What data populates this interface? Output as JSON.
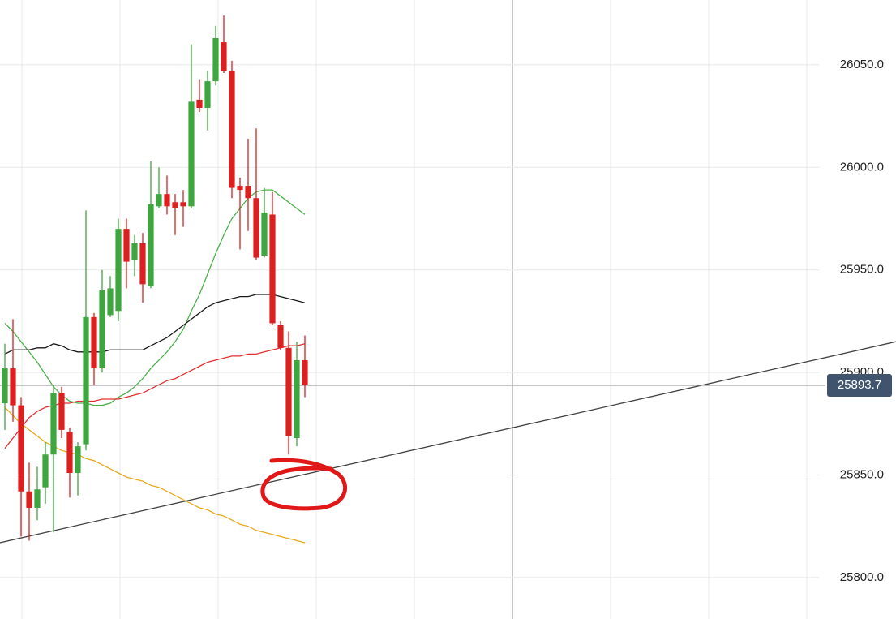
{
  "chart_data": {
    "type": "candlestick",
    "xlim": [
      -0.6,
      109.9
    ],
    "xgrid": [
      2.1,
      14.2,
      26.3,
      38.4,
      50.5,
      62.6,
      74.7,
      86.8,
      98.9
    ],
    "ylim": [
      25779.8,
      26081.6
    ],
    "yticks": [
      {
        "value": 25800,
        "label": "25800.0"
      },
      {
        "value": 25850,
        "label": "25850.0"
      },
      {
        "value": 25900,
        "label": "25900.0"
      },
      {
        "value": 25950,
        "label": "25950.0"
      },
      {
        "value": 26000,
        "label": "26000.0"
      },
      {
        "value": 26050,
        "label": "26050.0"
      }
    ],
    "grid": true,
    "up_color": "#3ea63e",
    "down_color": "#dc1f1f",
    "open": [
      25885,
      25902,
      25884,
      25842,
      25834,
      25844,
      25860,
      25890,
      25871,
      25851,
      25865,
      25927,
      25902,
      25928,
      25930,
      25970,
      25955,
      25963,
      25942,
      25981,
      25987,
      25983,
      25983,
      25981,
      26033,
      26029,
      26042,
      26061,
      26047,
      25991,
      25991,
      25985,
      25957,
      25977,
      25923,
      25912,
      25868,
      25906
    ],
    "high": [
      25914,
      25926,
      25888,
      25856,
      25854,
      25866,
      25894,
      25893,
      25873,
      25866,
      25979,
      25929,
      25950,
      25947,
      25975,
      25975,
      25967,
      25968,
      26003,
      26000,
      25996,
      25987,
      25989,
      26060,
      26043,
      26047,
      26069,
      26074,
      26052,
      25995,
      26014,
      26019,
      25990,
      25988,
      25925,
      25920,
      25915,
      25918
    ],
    "low": [
      25872,
      25876,
      25820,
      25818,
      25828,
      25836,
      25822,
      25868,
      25839,
      25840,
      25862,
      25894,
      25900,
      25927,
      25925,
      25941,
      25947,
      25934,
      25941,
      25980,
      25977,
      25967,
      25971,
      25980,
      26027,
      26018,
      26040,
      26046,
      25985,
      25960,
      25969,
      25955,
      25956,
      25923,
      25911,
      25860,
      25864,
      25888
    ],
    "close": [
      25902,
      25884,
      25842,
      25834,
      25843,
      25860,
      25890,
      25872,
      25851,
      25864,
      25927,
      25902,
      25940,
      25941,
      25970,
      25954,
      25963,
      25943,
      25982,
      25987,
      25981,
      25980,
      25981,
      26032,
      26029,
      26042,
      26063,
      26047,
      25990,
      25989,
      25985,
      25956,
      25978,
      25924,
      25912,
      25869,
      25906,
      25894
    ],
    "moving_averages": [
      {
        "color": "#4cb04c",
        "values": [
          25924,
          25920,
          25915,
          25910,
          25905,
          25899,
          25893,
          25889,
          25886,
          25885,
          25885,
          25884,
          25884,
          25885,
          25888,
          25890,
          25893,
          25897,
          25902,
          25906,
          25910,
          25915,
          25921,
          25930,
          25938,
          25948,
          25958,
          25967,
          25975,
          25980,
          25985,
          25988,
          25989,
          25989,
          25986,
          25983,
          25980,
          25977
        ]
      },
      {
        "color": "#1a1a1a",
        "values": [
          25909,
          25911,
          25911,
          25911,
          25912,
          25912,
          25914,
          25913,
          25911,
          25910,
          25910,
          25910,
          25910,
          25911,
          25911,
          25911,
          25911,
          25911,
          25913,
          25915,
          25917,
          25920,
          25923,
          25926,
          25929,
          25932,
          25934,
          25935,
          25936,
          25937,
          25937,
          25938,
          25938,
          25938,
          25937,
          25936,
          25935,
          25934
        ]
      },
      {
        "color": "#e03030",
        "values": [
          25863,
          25868,
          25873,
          25878,
          25881,
          25883,
          25884,
          25885,
          25885,
          25886,
          25886,
          25886,
          25887,
          25887,
          25887,
          25888,
          25889,
          25890,
          25892,
          25894,
          25896,
          25897,
          25899,
          25901,
          25903,
          25905,
          25906,
          25907,
          25908,
          25908,
          25909,
          25909,
          25910,
          25911,
          25912,
          25913,
          25913,
          25914
        ]
      },
      {
        "color": "#e8a91c",
        "values": [
          25883,
          25879,
          25875,
          25872,
          25869,
          25866,
          25864,
          25862,
          25861,
          25860,
          25858,
          25857,
          25855,
          25853,
          25851,
          25849,
          25848,
          25847,
          25845,
          25844,
          25842,
          25840,
          25838,
          25836,
          25834,
          25833,
          25831,
          25830,
          25828,
          25826,
          25825,
          25823,
          25822,
          25821,
          25820,
          25819,
          25818,
          25817
        ]
      }
    ],
    "trendline": {
      "x": [
        -0.6,
        109.9
      ],
      "y": [
        25817,
        25915
      ]
    },
    "last_price": 25893.7
  }
}
